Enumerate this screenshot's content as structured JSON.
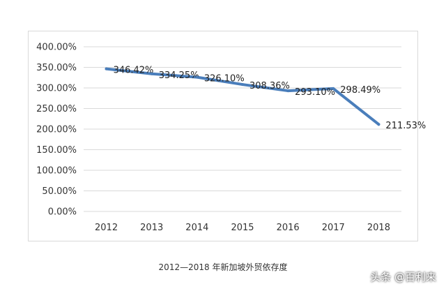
{
  "chart_data": {
    "type": "line",
    "categories": [
      "2012",
      "2013",
      "2014",
      "2015",
      "2016",
      "2017",
      "2018"
    ],
    "series": [
      {
        "values": [
          346.42,
          334.25,
          326.1,
          308.36,
          293.1,
          298.49,
          211.53
        ],
        "data_labels": [
          "346.42%",
          "334.25%",
          "326.10%",
          "308.36%",
          "293.10%",
          "298.49%",
          "211.53%"
        ],
        "color": "#4a7ebb"
      }
    ],
    "y_ticks": [
      "0.00%",
      "50.00%",
      "100.00%",
      "150.00%",
      "200.00%",
      "250.00%",
      "300.00%",
      "350.00%",
      "400.00%"
    ],
    "ylim": [
      0,
      400
    ],
    "grid": true,
    "title": ""
  },
  "caption": "2012—2018 年新加坡外贸依存度",
  "watermark": "头条 @百利来"
}
